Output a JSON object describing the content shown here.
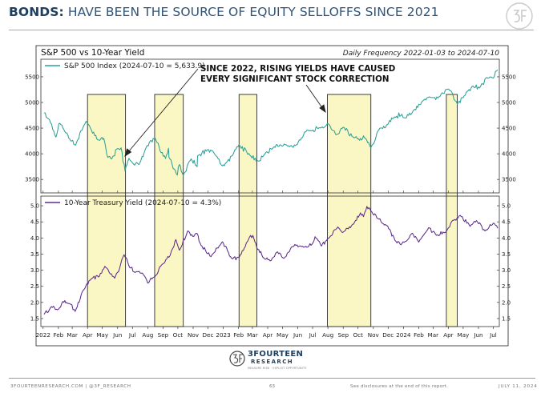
{
  "page": {
    "title_bold": "BONDS:",
    "title_rest": "HAVE BEEN THE SOURCE OF EQUITY SELLOFFS SINCE 2021",
    "footer_site": "3FOURTEENRESEARCH.COM",
    "footer_separator": "|",
    "footer_handle": "@3F_RESEARCH",
    "page_number": "63",
    "disclosure": "See disclosures at the end of this report.",
    "date": "JULY 11, 2024",
    "logo_name": "3FOURTEEN",
    "logo_sub": "RESEARCH",
    "logo_tag": "MEASURE RISK · EXPLOIT OPPORTUNITY"
  },
  "colors": {
    "spx": "#2aa198",
    "yield": "#5e2b8c",
    "highlight_fill": "#fbf7c4",
    "highlight_stroke": "#2b2b2b",
    "brand": "#1f3f60"
  },
  "chart_data": {
    "type": "line",
    "title": "S&P 500 vs 10-Year Yield",
    "subtitle": "Daily Frequency 2022-01-03 to 2024-07-10",
    "annotation": [
      "SINCE 2022, RISING YIELDS HAVE CAUSED",
      "EVERY SIGNIFICANT STOCK CORRECTION"
    ],
    "x_range": [
      "2022-01-03",
      "2024-07-10"
    ],
    "x_tick_labels": [
      "2022",
      "Feb",
      "Mar",
      "Apr",
      "May",
      "Jun",
      "Jul",
      "Aug",
      "Sep",
      "Oct",
      "Nov",
      "Dec",
      "2023",
      "Feb",
      "Mar",
      "Apr",
      "May",
      "Jun",
      "Jul",
      "Aug",
      "Sep",
      "Oct",
      "Nov",
      "Dec",
      "2024",
      "Feb",
      "Mar",
      "Apr",
      "May",
      "Jun",
      "Jul"
    ],
    "x_tick_dates": [
      "2022-01-01",
      "2022-02-01",
      "2022-03-01",
      "2022-04-01",
      "2022-05-01",
      "2022-06-01",
      "2022-07-01",
      "2022-08-01",
      "2022-09-01",
      "2022-10-01",
      "2022-11-01",
      "2022-12-01",
      "2023-01-01",
      "2023-02-01",
      "2023-03-01",
      "2023-04-01",
      "2023-05-01",
      "2023-06-01",
      "2023-07-01",
      "2023-08-01",
      "2023-09-01",
      "2023-10-01",
      "2023-11-01",
      "2023-12-01",
      "2024-01-01",
      "2024-02-01",
      "2024-03-01",
      "2024-04-01",
      "2024-05-01",
      "2024-06-01",
      "2024-07-01"
    ],
    "highlight_periods": [
      {
        "start": "2022-04-01",
        "end": "2022-06-17"
      },
      {
        "start": "2022-08-15",
        "end": "2022-10-12"
      },
      {
        "start": "2023-02-02",
        "end": "2023-03-10"
      },
      {
        "start": "2023-07-31",
        "end": "2023-10-27"
      },
      {
        "start": "2024-03-28",
        "end": "2024-04-19"
      }
    ],
    "panels": [
      {
        "series_name": "S&P 500 Index (2024-07-10 = 5,633.9)",
        "ylim": [
          3300,
          5780
        ],
        "y_ticks": [
          3500,
          4000,
          4500,
          5000,
          5500
        ],
        "y_tick_labels": [
          "3500",
          "4000",
          "4500",
          "5000",
          "5500"
        ],
        "points": [
          [
            "2022-01-03",
            4796
          ],
          [
            "2022-01-14",
            4662
          ],
          [
            "2022-01-27",
            4326
          ],
          [
            "2022-02-02",
            4589
          ],
          [
            "2022-02-10",
            4504
          ],
          [
            "2022-02-24",
            4288
          ],
          [
            "2022-03-08",
            4171
          ],
          [
            "2022-03-29",
            4632
          ],
          [
            "2022-04-07",
            4500
          ],
          [
            "2022-04-22",
            4272
          ],
          [
            "2022-05-04",
            4300
          ],
          [
            "2022-05-12",
            3930
          ],
          [
            "2022-05-20",
            3901
          ],
          [
            "2022-06-01",
            4101
          ],
          [
            "2022-06-08",
            4115
          ],
          [
            "2022-06-16",
            3666
          ],
          [
            "2022-06-24",
            3912
          ],
          [
            "2022-07-01",
            3825
          ],
          [
            "2022-07-14",
            3790
          ],
          [
            "2022-07-29",
            4130
          ],
          [
            "2022-08-16",
            4305
          ],
          [
            "2022-08-26",
            4057
          ],
          [
            "2022-09-06",
            3908
          ],
          [
            "2022-09-12",
            4110
          ],
          [
            "2022-09-13",
            3932
          ],
          [
            "2022-09-30",
            3585
          ],
          [
            "2022-10-04",
            3791
          ],
          [
            "2022-10-12",
            3577
          ],
          [
            "2022-10-28",
            3901
          ],
          [
            "2022-11-09",
            3748
          ],
          [
            "2022-11-10",
            3956
          ],
          [
            "2022-11-30",
            4080
          ],
          [
            "2022-12-13",
            4019
          ],
          [
            "2022-12-28",
            3783
          ],
          [
            "2023-01-05",
            3808
          ],
          [
            "2023-01-20",
            3972
          ],
          [
            "2023-02-02",
            4179
          ],
          [
            "2023-02-24",
            3970
          ],
          [
            "2023-03-13",
            3855
          ],
          [
            "2023-03-24",
            3971
          ],
          [
            "2023-04-14",
            4138
          ],
          [
            "2023-04-28",
            4169
          ],
          [
            "2023-05-15",
            4136
          ],
          [
            "2023-05-31",
            4180
          ],
          [
            "2023-06-15",
            4426
          ],
          [
            "2023-06-30",
            4450
          ],
          [
            "2023-07-14",
            4505
          ],
          [
            "2023-07-31",
            4589
          ],
          [
            "2023-08-18",
            4370
          ],
          [
            "2023-09-01",
            4516
          ],
          [
            "2023-09-21",
            4330
          ],
          [
            "2023-10-04",
            4263
          ],
          [
            "2023-10-12",
            4349
          ],
          [
            "2023-10-27",
            4117
          ],
          [
            "2023-11-14",
            4496
          ],
          [
            "2023-11-30",
            4568
          ],
          [
            "2023-12-14",
            4720
          ],
          [
            "2023-12-29",
            4770
          ],
          [
            "2024-01-05",
            4697
          ],
          [
            "2024-01-22",
            4850
          ],
          [
            "2024-02-09",
            5027
          ],
          [
            "2024-02-29",
            5096
          ],
          [
            "2024-03-15",
            5117
          ],
          [
            "2024-03-28",
            5254
          ],
          [
            "2024-04-08",
            5202
          ],
          [
            "2024-04-19",
            4967
          ],
          [
            "2024-05-03",
            5128
          ],
          [
            "2024-05-21",
            5322
          ],
          [
            "2024-06-03",
            5283
          ],
          [
            "2024-06-18",
            5487
          ],
          [
            "2024-07-01",
            5475
          ],
          [
            "2024-07-10",
            5634
          ]
        ]
      },
      {
        "series_name": "10-Year Treasury Yield (2024-07-10 = 4.3%)",
        "ylim": [
          1.35,
          5.2
        ],
        "y_ticks": [
          1.5,
          2.0,
          2.5,
          3.0,
          3.5,
          4.0,
          4.5,
          5.0
        ],
        "y_tick_labels": [
          "1.5",
          "2.0",
          "2.5",
          "3.0",
          "3.5",
          "4.0",
          "4.5",
          "5.0"
        ],
        "points": [
          [
            "2022-01-03",
            1.63
          ],
          [
            "2022-01-18",
            1.87
          ],
          [
            "2022-02-01",
            1.79
          ],
          [
            "2022-02-10",
            2.03
          ],
          [
            "2022-02-24",
            1.96
          ],
          [
            "2022-03-07",
            1.72
          ],
          [
            "2022-03-21",
            2.32
          ],
          [
            "2022-04-08",
            2.72
          ],
          [
            "2022-04-25",
            2.81
          ],
          [
            "2022-05-06",
            3.12
          ],
          [
            "2022-05-26",
            2.75
          ],
          [
            "2022-06-03",
            2.96
          ],
          [
            "2022-06-14",
            3.48
          ],
          [
            "2022-06-24",
            3.13
          ],
          [
            "2022-07-06",
            2.93
          ],
          [
            "2022-07-21",
            2.91
          ],
          [
            "2022-08-01",
            2.6
          ],
          [
            "2022-08-16",
            2.81
          ],
          [
            "2022-08-31",
            3.19
          ],
          [
            "2022-09-15",
            3.45
          ],
          [
            "2022-09-27",
            3.95
          ],
          [
            "2022-10-04",
            3.62
          ],
          [
            "2022-10-21",
            4.22
          ],
          [
            "2022-10-31",
            4.05
          ],
          [
            "2022-11-09",
            4.14
          ],
          [
            "2022-11-17",
            3.77
          ],
          [
            "2022-12-07",
            3.42
          ],
          [
            "2022-12-30",
            3.88
          ],
          [
            "2023-01-18",
            3.37
          ],
          [
            "2023-02-02",
            3.39
          ],
          [
            "2023-02-21",
            3.95
          ],
          [
            "2023-03-02",
            4.08
          ],
          [
            "2023-03-10",
            3.7
          ],
          [
            "2023-03-24",
            3.38
          ],
          [
            "2023-04-06",
            3.29
          ],
          [
            "2023-04-21",
            3.57
          ],
          [
            "2023-05-04",
            3.37
          ],
          [
            "2023-05-26",
            3.8
          ],
          [
            "2023-06-15",
            3.72
          ],
          [
            "2023-06-30",
            3.81
          ],
          [
            "2023-07-06",
            4.04
          ],
          [
            "2023-07-19",
            3.75
          ],
          [
            "2023-07-31",
            3.97
          ],
          [
            "2023-08-21",
            4.34
          ],
          [
            "2023-09-01",
            4.18
          ],
          [
            "2023-09-22",
            4.43
          ],
          [
            "2023-10-06",
            4.78
          ],
          [
            "2023-10-12",
            4.66
          ],
          [
            "2023-10-19",
            4.98
          ],
          [
            "2023-10-27",
            4.84
          ],
          [
            "2023-11-10",
            4.61
          ],
          [
            "2023-11-30",
            4.37
          ],
          [
            "2023-12-15",
            3.92
          ],
          [
            "2023-12-27",
            3.79
          ],
          [
            "2024-01-19",
            4.15
          ],
          [
            "2024-02-01",
            3.87
          ],
          [
            "2024-02-21",
            4.32
          ],
          [
            "2024-03-08",
            4.08
          ],
          [
            "2024-03-28",
            4.2
          ],
          [
            "2024-04-10",
            4.55
          ],
          [
            "2024-04-25",
            4.7
          ],
          [
            "2024-05-15",
            4.36
          ],
          [
            "2024-05-28",
            4.54
          ],
          [
            "2024-06-14",
            4.22
          ],
          [
            "2024-07-01",
            4.46
          ],
          [
            "2024-07-10",
            4.3
          ]
        ]
      }
    ]
  }
}
